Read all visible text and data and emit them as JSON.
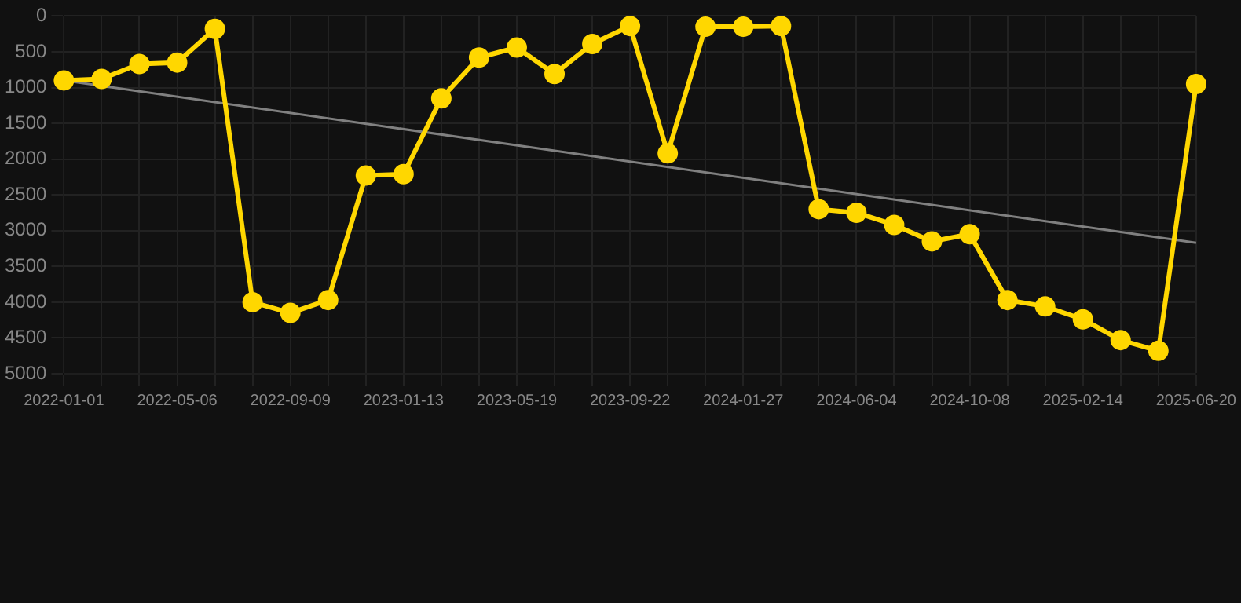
{
  "chart_data": {
    "type": "line",
    "categories": [
      "2022-01-01",
      null,
      null,
      "2022-05-06",
      null,
      null,
      "2022-09-09",
      null,
      null,
      "2023-01-13",
      null,
      null,
      "2023-05-19",
      null,
      null,
      "2023-09-22",
      null,
      null,
      "2024-01-27",
      null,
      null,
      "2024-06-04",
      null,
      null,
      "2024-10-08",
      null,
      null,
      "2025-02-14",
      null,
      null,
      "2025-06-20"
    ],
    "series": [
      {
        "color": "#ffd700",
        "marker": "circle",
        "values": [
          900,
          880,
          670,
          650,
          180,
          4000,
          4150,
          3970,
          2230,
          2210,
          1150,
          580,
          440,
          810,
          390,
          140,
          1920,
          150,
          150,
          140,
          2700,
          2750,
          2920,
          3150,
          3050,
          3970,
          4060,
          4240,
          4530,
          4680,
          950
        ]
      },
      {
        "color": "#808080",
        "marker": "none",
        "values": [
          900,
          null,
          null,
          null,
          null,
          null,
          null,
          null,
          null,
          null,
          null,
          null,
          null,
          null,
          null,
          null,
          null,
          null,
          null,
          null,
          null,
          null,
          null,
          null,
          null,
          null,
          null,
          null,
          null,
          null,
          3170
        ]
      }
    ],
    "ylim": [
      5000,
      0
    ],
    "yticks": [
      0,
      500,
      1000,
      1500,
      2000,
      2500,
      3000,
      3500,
      4000,
      4500,
      5000
    ],
    "grid": true,
    "legend": false
  }
}
